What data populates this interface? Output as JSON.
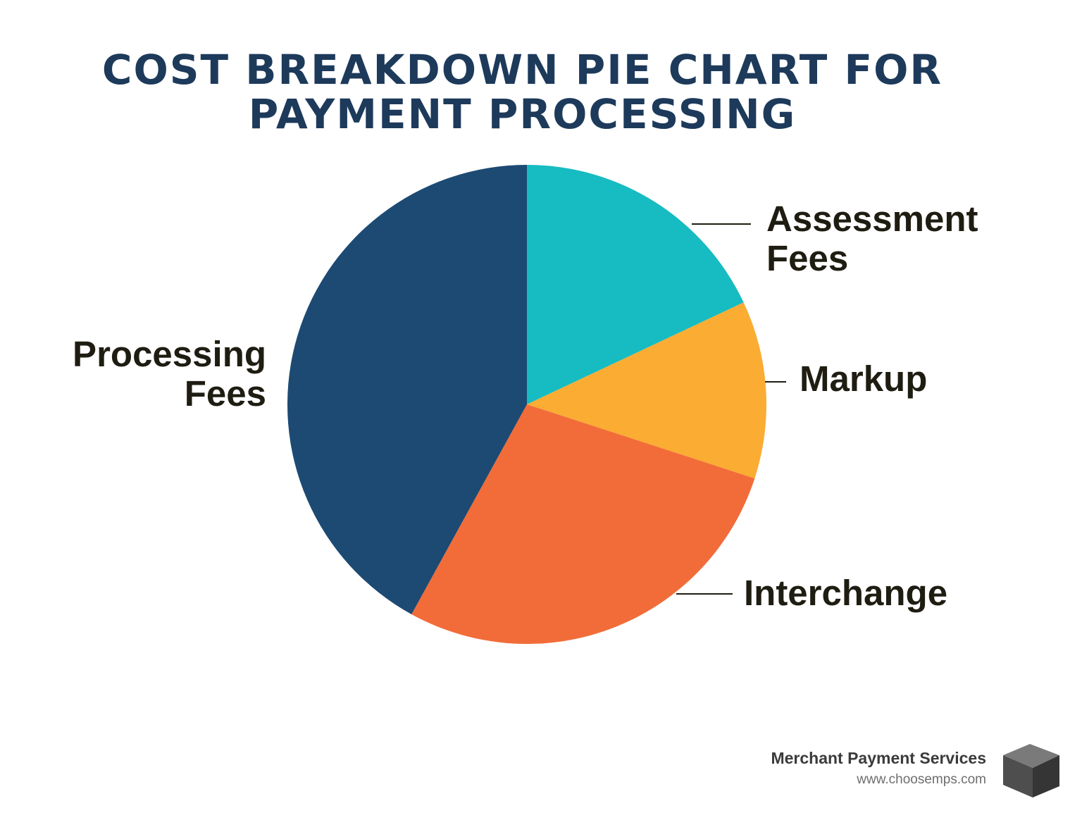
{
  "chart_data": {
    "type": "pie",
    "title_lines": [
      "COST BREAKDOWN PIE CHART FOR",
      "PAYMENT PROCESSING"
    ],
    "slices": [
      {
        "label_lines": [
          "Assessment",
          "Fees"
        ],
        "value": 18,
        "color": "#16bcc2"
      },
      {
        "label_lines": [
          "Markup"
        ],
        "value": 12,
        "color": "#fbac33"
      },
      {
        "label_lines": [
          "Interchange"
        ],
        "value": 28,
        "color": "#f26c39"
      },
      {
        "label_lines": [
          "Processing",
          "Fees"
        ],
        "value": 42,
        "color": "#1c4a73"
      }
    ],
    "start_angle_deg": 0,
    "direction": "clockwise"
  },
  "footer": {
    "brand_name": "Merchant Payment Services",
    "url": "www.choosemps.com",
    "logo_icon": "cube-icon"
  }
}
